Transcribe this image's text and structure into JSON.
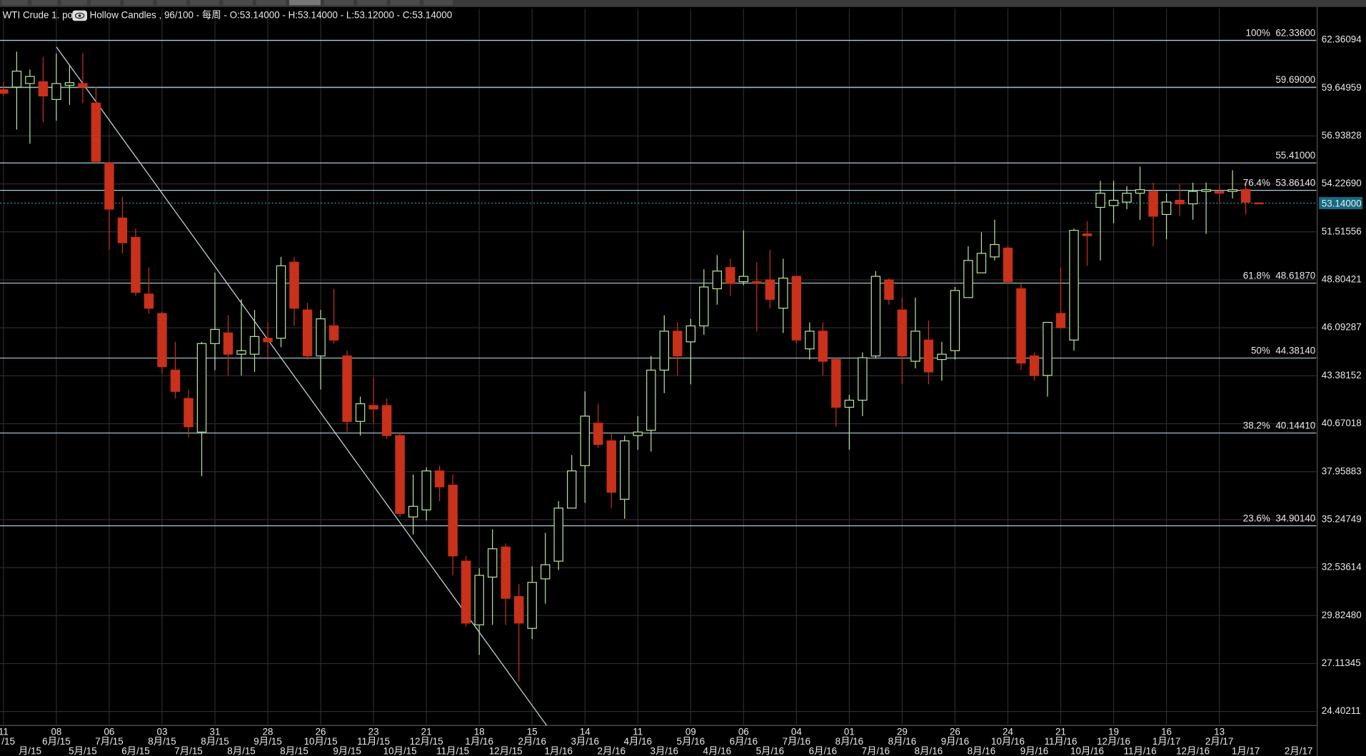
{
  "chart_data": {
    "type": "candlestick",
    "title": "WTI Crude 1. pos",
    "subtitle": "Hollow Candles , 96/100 - 每周 - O:53.14000 - H:53.14000 - L:53.12000 - C:53.14000",
    "categories": [
      "11",
      null,
      null,
      null,
      "08",
      null,
      null,
      null,
      "06",
      null,
      null,
      null,
      "03",
      null,
      null,
      null,
      "31",
      null,
      null,
      null,
      "28",
      null,
      null,
      null,
      "26",
      null,
      null,
      null,
      "23",
      null,
      null,
      null,
      "21",
      null,
      null,
      null,
      "18",
      null,
      null,
      null,
      "15",
      null,
      null,
      null,
      "14",
      null,
      null,
      null,
      "11",
      null,
      null,
      null,
      "09",
      null,
      null,
      null,
      "06",
      null,
      null,
      null,
      "04",
      null,
      null,
      null,
      "01",
      null,
      null,
      null,
      "29",
      null,
      null,
      null,
      "26",
      null,
      null,
      null,
      "24",
      null,
      null,
      null,
      "21",
      null,
      null,
      null,
      "19",
      null,
      null,
      null,
      "16",
      null,
      null,
      null,
      "13",
      null,
      null,
      null,
      null,
      null,
      null,
      null
    ],
    "category_months": [
      "月/15",
      null,
      null,
      null,
      "6月/15",
      null,
      null,
      null,
      "7月/15",
      null,
      null,
      null,
      "8月/15",
      null,
      null,
      null,
      "8月/15",
      null,
      null,
      null,
      "9月/15",
      null,
      null,
      null,
      "10月/15",
      null,
      null,
      null,
      "11月/15",
      null,
      null,
      null,
      "12月/15",
      null,
      null,
      null,
      "1月/16",
      null,
      null,
      null,
      "2月/16",
      null,
      null,
      null,
      "3月/16",
      null,
      null,
      null,
      "4月/16",
      null,
      null,
      null,
      "5月/16",
      null,
      null,
      null,
      "6月/16",
      null,
      null,
      null,
      "7月/16",
      null,
      null,
      null,
      "8月/16",
      null,
      null,
      null,
      "8月/16",
      null,
      null,
      null,
      "9月/16",
      null,
      null,
      null,
      "10月/16",
      null,
      null,
      null,
      "11月/16",
      null,
      null,
      null,
      "12月/16",
      null,
      null,
      null,
      "1月/17",
      null,
      null,
      null,
      "2月/17",
      null,
      null,
      null,
      null,
      null,
      null,
      null
    ],
    "category_months_lower": [
      null,
      null,
      "月/15",
      null,
      null,
      null,
      "5月/15",
      null,
      null,
      null,
      "6月/15",
      null,
      null,
      null,
      "7月/15",
      null,
      null,
      null,
      "8月/15",
      null,
      null,
      null,
      "8月/15",
      null,
      null,
      null,
      "9月/15",
      null,
      null,
      null,
      "10月/15",
      null,
      null,
      null,
      "11月/15",
      null,
      null,
      null,
      "12月/15",
      null,
      null,
      null,
      "1月/16",
      null,
      null,
      null,
      "2月/16",
      null,
      null,
      null,
      "3月/16",
      null,
      null,
      null,
      "4月/16",
      null,
      null,
      null,
      "5月/16",
      null,
      null,
      null,
      "6月/16",
      null,
      null,
      null,
      "7月/16",
      null,
      null,
      null,
      "8月/16",
      null,
      null,
      null,
      "8月/16",
      null,
      null,
      null,
      "9月/16",
      null,
      null,
      null,
      "10月/16",
      null,
      null,
      null,
      "11月/16",
      null,
      null,
      null,
      "12月/16",
      null,
      null,
      null,
      "1月/17",
      null,
      null,
      null,
      "2月/17",
      null
    ],
    "open": [
      59.55,
      59.7,
      59.9,
      60.0,
      59.0,
      59.8,
      59.9,
      58.8,
      55.4,
      52.3,
      51.2,
      48.0,
      46.9,
      43.7,
      42.1,
      40.2,
      45.2,
      45.8,
      44.6,
      44.6,
      45.5,
      45.5,
      49.8,
      47.1,
      44.5,
      46.2,
      44.5,
      40.8,
      41.7,
      41.7,
      40.0,
      35.4,
      35.8,
      38.0,
      37.2,
      32.9,
      29.3,
      32.0,
      33.7,
      30.9,
      29.1,
      31.9,
      32.9,
      35.9,
      38.3,
      40.7,
      39.7,
      36.4,
      40.0,
      40.3,
      43.7,
      45.9,
      45.3,
      46.2,
      48.3,
      49.5,
      48.7,
      48.7,
      48.8,
      47.2,
      49.0,
      44.9,
      45.9,
      44.3,
      41.6,
      42.0,
      44.5,
      48.8,
      47.1,
      44.2,
      45.4,
      44.3,
      44.8,
      47.8,
      49.2,
      50.1,
      50.6,
      48.3,
      44.5,
      43.4,
      46.9,
      45.4,
      51.4,
      52.9,
      53.0,
      53.2,
      53.7,
      53.8,
      52.5,
      53.3,
      53.1,
      53.8,
      53.8,
      53.8,
      53.9,
      53.15,
      null,
      null,
      null,
      null
    ],
    "high": [
      60.0,
      61.7,
      60.7,
      61.4,
      61.6,
      60.9,
      61.6,
      59.7,
      55.5,
      53.5,
      51.7,
      49.5,
      47.0,
      45.3,
      42.6,
      45.3,
      49.2,
      46.8,
      47.7,
      47.1,
      46.4,
      50.1,
      50.1,
      47.5,
      47.1,
      48.3,
      44.8,
      42.2,
      43.3,
      42.1,
      40.15,
      37.8,
      38.2,
      38.3,
      37.8,
      33.2,
      32.5,
      34.7,
      33.9,
      31.6,
      32.6,
      34.5,
      36.3,
      38.9,
      42.5,
      41.8,
      40.1,
      40.0,
      41.1,
      44.5,
      46.8,
      46.4,
      46.6,
      49.4,
      50.2,
      50.0,
      51.6,
      49.8,
      50.5,
      50.0,
      49.0,
      46.4,
      46.4,
      44.4,
      42.3,
      44.7,
      49.3,
      48.9,
      47.8,
      47.8,
      46.5,
      45.3,
      48.4,
      50.7,
      51.5,
      52.2,
      50.7,
      48.6,
      44.7,
      46.4,
      49.5,
      51.7,
      52.1,
      54.4,
      54.4,
      54.1,
      55.2,
      54.3,
      53.7,
      54.2,
      54.3,
      54.3,
      54.2,
      55.0,
      54.3,
      53.15,
      null,
      null,
      null,
      null
    ],
    "low": [
      59.2,
      57.3,
      56.5,
      57.7,
      57.8,
      58.7,
      58.8,
      55.4,
      50.5,
      50.3,
      47.9,
      46.9,
      43.5,
      42.1,
      39.9,
      37.7,
      43.7,
      43.4,
      43.4,
      43.6,
      44.3,
      45.0,
      46.2,
      44.3,
      42.6,
      45.2,
      40.2,
      40.0,
      40.7,
      39.8,
      35.4,
      34.4,
      35.2,
      36.3,
      32.1,
      29.2,
      27.6,
      29.3,
      29.3,
      26.1,
      28.5,
      30.5,
      32.4,
      35.9,
      36.2,
      39.3,
      35.9,
      35.3,
      39.2,
      39.1,
      42.4,
      43.4,
      42.9,
      45.7,
      47.4,
      47.9,
      48.5,
      45.9,
      47.2,
      45.8,
      45.2,
      44.3,
      43.4,
      40.5,
      39.2,
      41.1,
      44.4,
      47.4,
      42.9,
      43.8,
      42.9,
      43.1,
      44.3,
      47.8,
      49.2,
      49.9,
      48.6,
      43.7,
      43.1,
      42.2,
      46.1,
      44.8,
      49.6,
      49.9,
      52.0,
      52.8,
      52.2,
      50.7,
      51.1,
      52.4,
      52.2,
      51.4,
      53.2,
      53.4,
      52.5,
      53.12,
      null,
      null,
      null,
      null
    ],
    "close": [
      59.35,
      60.6,
      60.3,
      59.2,
      59.9,
      59.95,
      59.7,
      55.5,
      52.8,
      50.9,
      48.1,
      47.2,
      43.9,
      42.5,
      40.5,
      45.2,
      46.0,
      44.6,
      44.8,
      45.6,
      45.3,
      49.6,
      47.2,
      44.5,
      46.6,
      45.4,
      40.8,
      41.8,
      41.5,
      40.0,
      35.6,
      36.0,
      38.0,
      37.1,
      33.2,
      29.4,
      32.1,
      33.6,
      30.8,
      29.4,
      31.7,
      32.7,
      35.9,
      38.0,
      41.1,
      39.5,
      36.8,
      39.7,
      40.2,
      43.7,
      45.9,
      44.5,
      46.2,
      48.4,
      49.3,
      48.6,
      49.0,
      48.6,
      47.7,
      48.9,
      45.4,
      45.9,
      44.2,
      41.6,
      42.0,
      44.4,
      49.0,
      47.7,
      44.5,
      45.9,
      43.6,
      44.6,
      48.2,
      49.9,
      50.3,
      50.8,
      48.7,
      44.1,
      43.4,
      46.4,
      46.1,
      51.6,
      51.3,
      53.7,
      53.3,
      53.7,
      53.9,
      52.4,
      53.2,
      53.1,
      53.8,
      53.9,
      53.7,
      53.9,
      53.2,
      53.14,
      null,
      null,
      null,
      null
    ],
    "up_color": "#b7e39c",
    "down_color": "#c9311a",
    "ylim": [
      23.61,
      64.13
    ],
    "yticks": [
      62.36094,
      59.64959,
      56.93828,
      {
        "value": 54.2269,
        "label": "54.22690"
      },
      51.51556,
      48.80421,
      46.09287,
      43.38152,
      40.67018,
      37.95883,
      35.24749,
      32.53614,
      {
        "value": 29.8248,
        "label": "29.82480"
      },
      27.11345,
      24.40211
    ],
    "grid": true,
    "fib_levels": [
      {
        "ratio": "100%",
        "value": 62.336,
        "value_label": "62.33600"
      },
      {
        "value": 59.69,
        "value_label": "59.69000"
      },
      {
        "value": 55.41,
        "value_label": "55.41000"
      },
      {
        "ratio": "76.4%",
        "value": 53.8614,
        "value_label": "53.86140"
      },
      {
        "ratio": "61.8%",
        "value": 48.6187,
        "value_label": "48.61870"
      },
      {
        "ratio": "50%",
        "value": 44.3814,
        "value_label": "44.38140"
      },
      {
        "ratio": "38.2%",
        "value": 40.1441,
        "value_label": "40.14410"
      },
      {
        "ratio": "23.6%",
        "value": 34.9014,
        "value_label": "34.90140"
      }
    ],
    "fib_color": "#a9cdd6",
    "last_price": 53.14,
    "last_price_label": "53.14000",
    "trend_line": {
      "start": {
        "index": 4,
        "value": 61.97
      },
      "end": {
        "index": 41.1,
        "value": 23.61
      }
    }
  }
}
